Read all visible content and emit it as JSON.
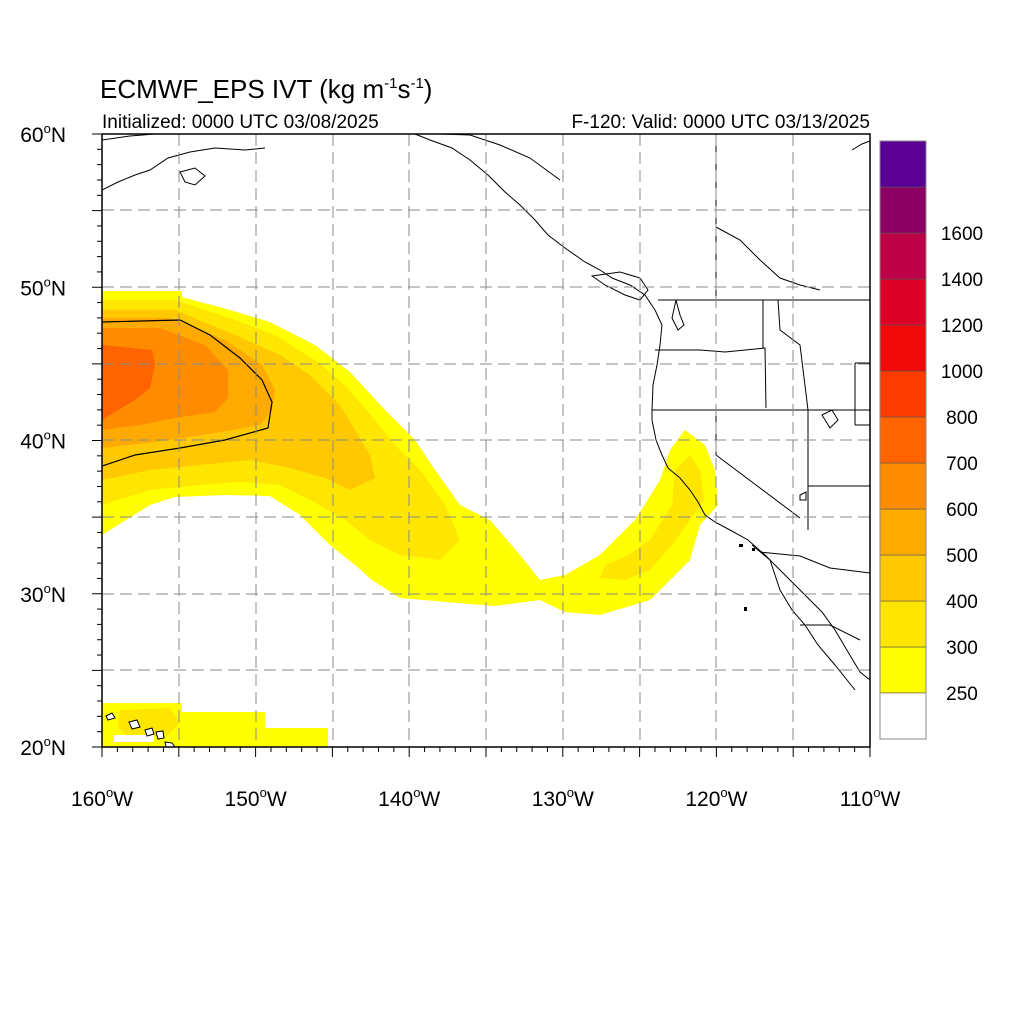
{
  "title": {
    "main": "ECMWF_EPS IVT (kg m",
    "main_sup1": "-1",
    "main_mid": "s",
    "main_sup2": "-1",
    "main_end": ")",
    "initialized": "Initialized: 0000 UTC 03/08/2025",
    "valid": "F-120: Valid: 0000 UTC 03/13/2025"
  },
  "axes": {
    "lat_labels": [
      {
        "value": 60,
        "num": "60",
        "hem": "N"
      },
      {
        "value": 50,
        "num": "50",
        "hem": "N"
      },
      {
        "value": 40,
        "num": "40",
        "hem": "N"
      },
      {
        "value": 30,
        "num": "30",
        "hem": "N"
      },
      {
        "value": 20,
        "num": "20",
        "hem": "N"
      }
    ],
    "lon_labels": [
      {
        "value": -160,
        "num": "160",
        "hem": "W"
      },
      {
        "value": -150,
        "num": "150",
        "hem": "W"
      },
      {
        "value": -140,
        "num": "140",
        "hem": "W"
      },
      {
        "value": -130,
        "num": "130",
        "hem": "W"
      },
      {
        "value": -120,
        "num": "120",
        "hem": "W"
      },
      {
        "value": -110,
        "num": "110",
        "hem": "W"
      }
    ],
    "lon_range": [
      -160,
      -110
    ],
    "lat_range": [
      20,
      60
    ],
    "grid": "dashed every 5 degrees"
  },
  "colorbar": {
    "levels": [
      {
        "label": "250",
        "color": "#ffff00"
      },
      {
        "label": "300",
        "color": "#ffe600"
      },
      {
        "label": "400",
        "color": "#ffc800"
      },
      {
        "label": "500",
        "color": "#ffaa00"
      },
      {
        "label": "600",
        "color": "#ff8c00"
      },
      {
        "label": "700",
        "color": "#ff6400"
      },
      {
        "label": "800",
        "color": "#ff3c00"
      },
      {
        "label": "1000",
        "color": "#f00a0a"
      },
      {
        "label": "1200",
        "color": "#dc0028"
      },
      {
        "label": "1400",
        "color": "#be0046"
      },
      {
        "label": "1600",
        "color": "#8c0064"
      },
      {
        "label": "",
        "color": "#5a0096"
      }
    ],
    "below_color": "#ffffff"
  },
  "colors": {
    "frame": "#000000",
    "grid": "#8a8a8a",
    "coast": "#000000"
  }
}
